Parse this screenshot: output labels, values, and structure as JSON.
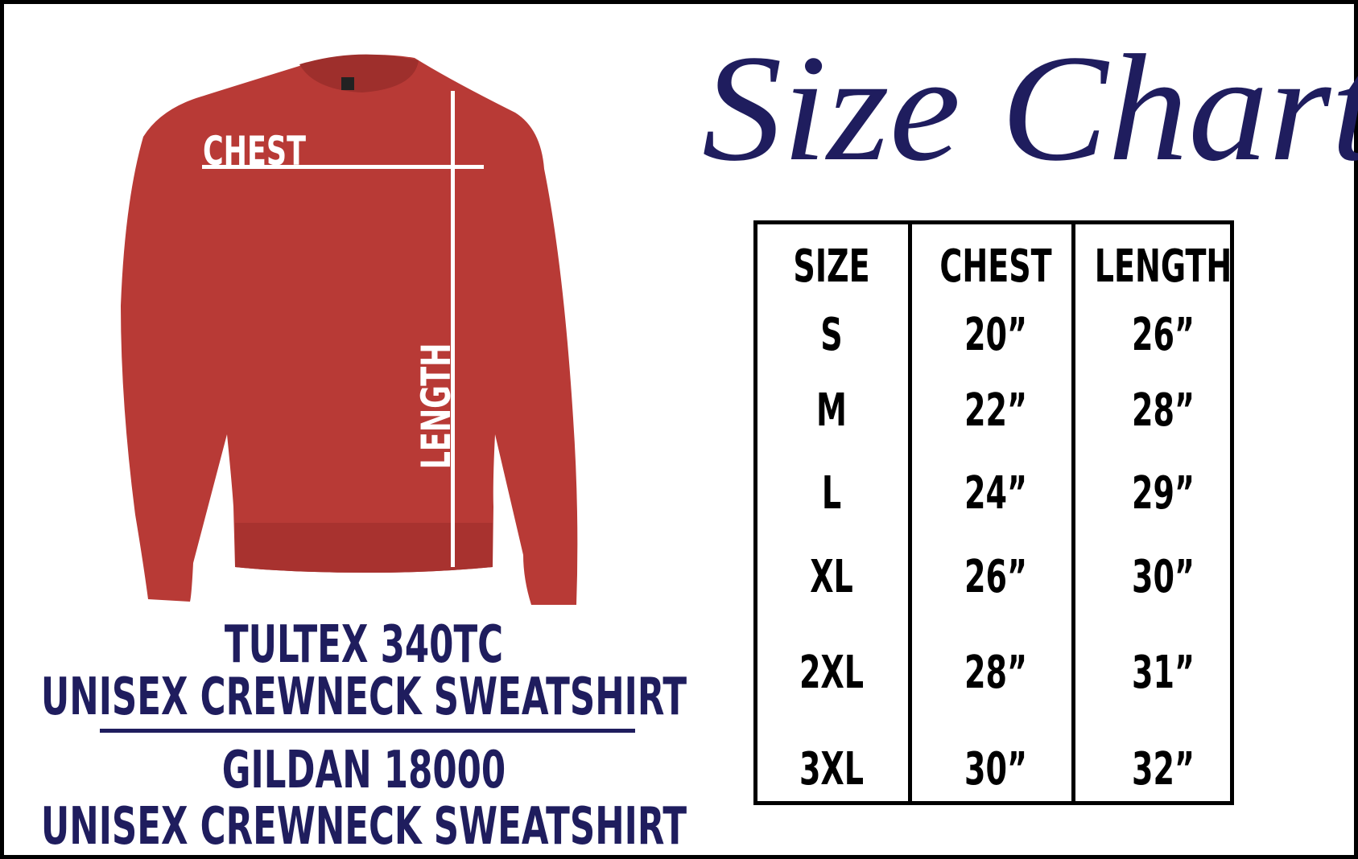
{
  "title": "Size Chart",
  "garment": {
    "image": "red-crewneck-sweatshirt",
    "color": "#b83a36",
    "chest_label": "CHEST",
    "length_label": "LENGTH"
  },
  "brands": [
    {
      "model": "TULTEX 340TC",
      "description": "UNISEX CREWNECK SWEATSHIRT"
    },
    {
      "model": "GILDAN 18000",
      "description": "UNISEX CREWNECK SWEATSHIRT"
    }
  ],
  "table": {
    "headers": [
      "SIZE",
      "CHEST",
      "LENGTH"
    ],
    "rows": [
      [
        "S",
        "20”",
        "26”"
      ],
      [
        "M",
        "22”",
        "28”"
      ],
      [
        "L",
        "24”",
        "29”"
      ],
      [
        "XL",
        "26”",
        "30”"
      ],
      [
        "2XL",
        "28”",
        "31”"
      ],
      [
        "3XL",
        "30”",
        "32”"
      ]
    ]
  },
  "colors": {
    "navy": "#1f1d5e",
    "shirt_red": "#b83a36",
    "border": "#000000"
  }
}
